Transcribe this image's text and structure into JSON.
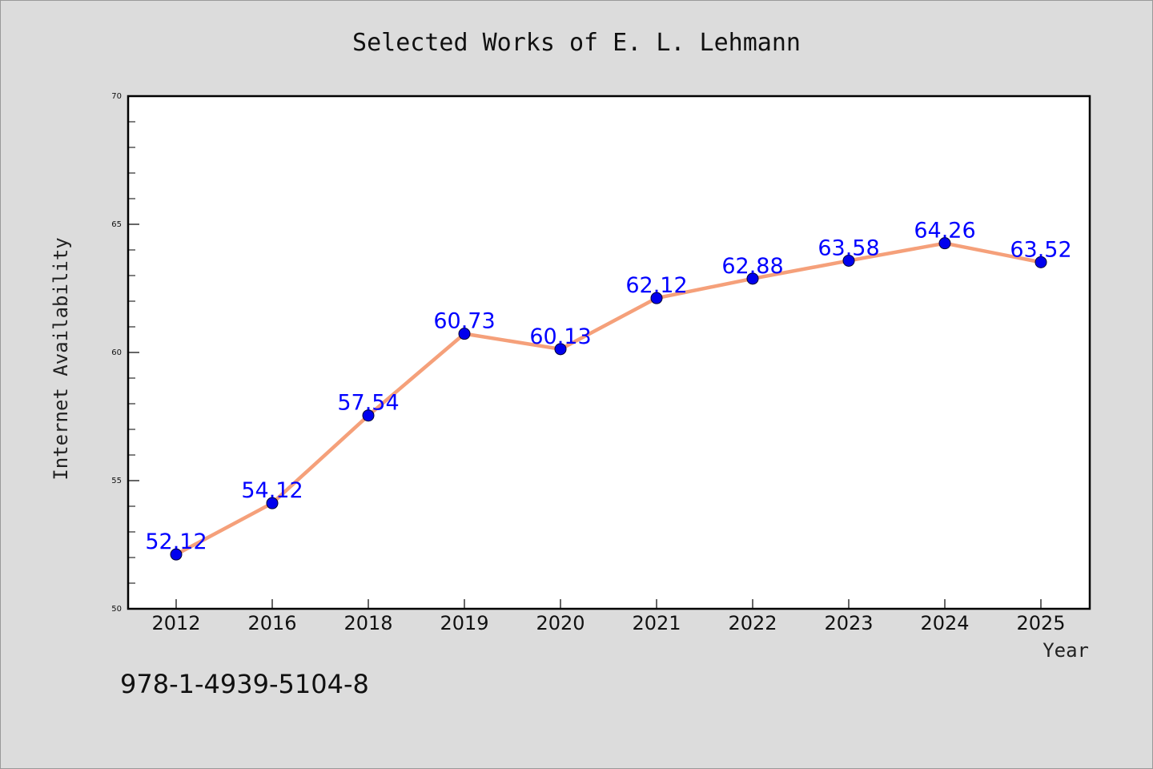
{
  "chart_data": {
    "type": "line",
    "title": "Selected Works of E. L. Lehmann",
    "xlabel": "Year",
    "ylabel": "Internet Availability",
    "categories": [
      "2012",
      "2016",
      "2018",
      "2019",
      "2020",
      "2021",
      "2022",
      "2023",
      "2024",
      "2025"
    ],
    "series": [
      {
        "values": [
          52.12,
          54.12,
          57.54,
          60.73,
          60.13,
          62.12,
          62.88,
          63.58,
          64.26,
          63.52
        ],
        "labels": [
          "52.12",
          "54.12",
          "57.54",
          "60.73",
          "60.13",
          "62.12",
          "62.88",
          "63.58",
          "64.26",
          "63.52"
        ],
        "line_color": "#f5a07a",
        "marker_color": "#0000ee"
      }
    ],
    "ylim": [
      50,
      70
    ],
    "yticks": [
      50,
      55,
      60,
      65,
      70
    ],
    "ytick_labels": [
      "50",
      "55",
      "60",
      "65",
      "70"
    ],
    "grid": false,
    "legend": "none"
  },
  "footer": {
    "isbn": "978-1-4939-5104-8"
  },
  "colors": {
    "background": "#dcdcdc",
    "plot_background": "#ffffff",
    "label_color": "#0000ff"
  }
}
